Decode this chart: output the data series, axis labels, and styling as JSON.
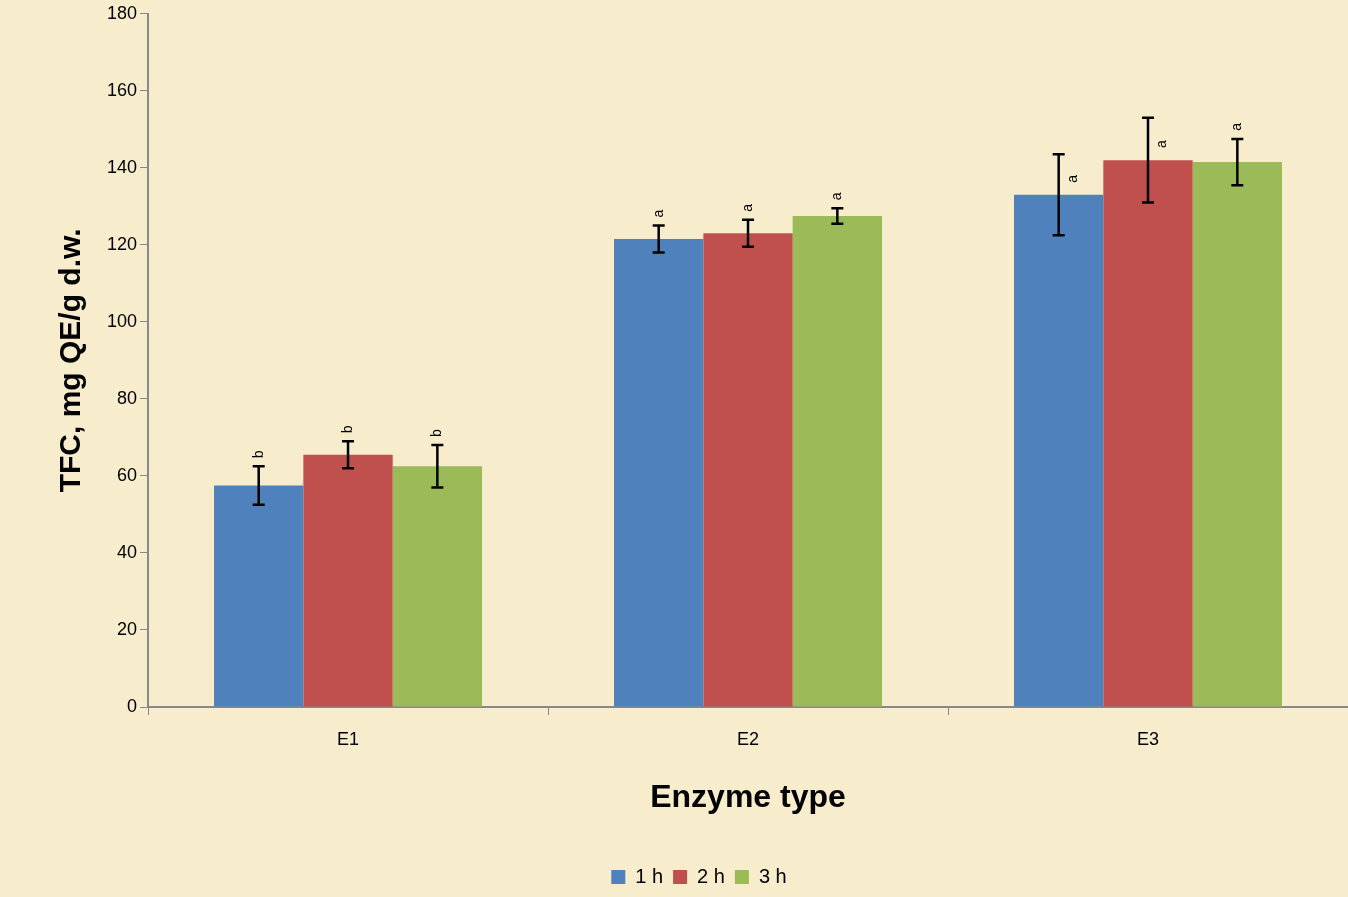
{
  "chart_data": {
    "type": "bar",
    "xlabel": "Enzyme type",
    "ylabel": "TFC, mg QE/g d.w.",
    "categories": [
      "E1",
      "E2",
      "E3"
    ],
    "series": [
      {
        "name": "1 h",
        "color": "#4f81bd",
        "values": [
          57.5,
          121.5,
          133
        ],
        "errors": [
          5,
          3.5,
          10.5
        ],
        "value_labels": [
          "b",
          "a",
          "a"
        ]
      },
      {
        "name": "2 h",
        "color": "#c0504d",
        "values": [
          65.5,
          123,
          142
        ],
        "errors": [
          3.5,
          3.5,
          11
        ],
        "value_labels": [
          "b",
          "a",
          "a"
        ]
      },
      {
        "name": "3 h",
        "color": "#9bbb59",
        "values": [
          62.5,
          127.5,
          141.5
        ],
        "errors": [
          5.5,
          2,
          6
        ],
        "value_labels": [
          "b",
          "a",
          "a"
        ]
      }
    ],
    "ylim": [
      0,
      180
    ],
    "yticks": [
      0,
      20,
      40,
      60,
      80,
      100,
      120,
      140,
      160,
      180
    ],
    "grid": false,
    "legend": "bottom"
  }
}
